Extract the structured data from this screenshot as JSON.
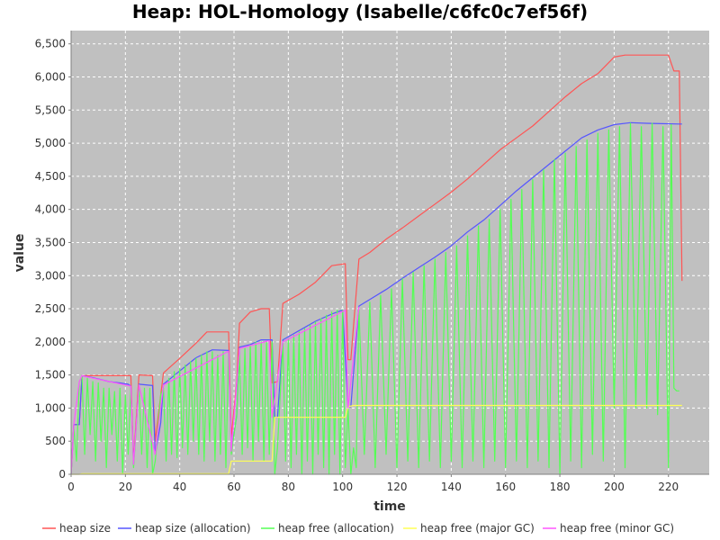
{
  "chart_data": {
    "type": "line",
    "title": "Heap: HOL-Homology (Isabelle/c6fc0c7ef56f)",
    "xlabel": "time",
    "ylabel": "value",
    "xlim": [
      0,
      235
    ],
    "ylim": [
      0,
      6700
    ],
    "x_ticks": [
      0,
      20,
      40,
      60,
      80,
      100,
      120,
      140,
      160,
      180,
      200,
      220
    ],
    "y_ticks": [
      0,
      500,
      1000,
      1500,
      2000,
      2500,
      3000,
      3500,
      4000,
      4500,
      5000,
      5500,
      6000,
      6500
    ],
    "x_tick_labels": [
      "0",
      "20",
      "40",
      "60",
      "80",
      "100",
      "120",
      "140",
      "160",
      "180",
      "200",
      "220"
    ],
    "y_tick_labels": [
      "0",
      "500",
      "1,000",
      "1,500",
      "2,000",
      "2,500",
      "3,000",
      "3,500",
      "4,000",
      "4,500",
      "5,000",
      "5,500",
      "6,000",
      "6,500"
    ],
    "grid": true,
    "legend_position": "bottom",
    "background": "#c0c0c0",
    "series": [
      {
        "name": "heap size",
        "color": "#ff5555",
        "points": [
          [
            0,
            0
          ],
          [
            1,
            750
          ],
          [
            3,
            750
          ],
          [
            4,
            1490
          ],
          [
            22,
            1490
          ],
          [
            23,
            200
          ],
          [
            25,
            1500
          ],
          [
            30,
            1490
          ],
          [
            31,
            500
          ],
          [
            33,
            1200
          ],
          [
            34,
            1530
          ],
          [
            40,
            1750
          ],
          [
            46,
            1980
          ],
          [
            50,
            2150
          ],
          [
            58,
            2150
          ],
          [
            59,
            560
          ],
          [
            61,
            1400
          ],
          [
            62,
            2280
          ],
          [
            66,
            2450
          ],
          [
            70,
            2500
          ],
          [
            73,
            2500
          ],
          [
            74,
            1380
          ],
          [
            76,
            1400
          ],
          [
            78,
            2580
          ],
          [
            84,
            2720
          ],
          [
            90,
            2900
          ],
          [
            96,
            3150
          ],
          [
            101,
            3180
          ],
          [
            102,
            1730
          ],
          [
            103,
            1730
          ],
          [
            106,
            3250
          ],
          [
            110,
            3350
          ],
          [
            116,
            3550
          ],
          [
            122,
            3720
          ],
          [
            128,
            3900
          ],
          [
            134,
            4080
          ],
          [
            140,
            4260
          ],
          [
            146,
            4460
          ],
          [
            152,
            4680
          ],
          [
            158,
            4900
          ],
          [
            164,
            5080
          ],
          [
            170,
            5260
          ],
          [
            176,
            5480
          ],
          [
            182,
            5700
          ],
          [
            188,
            5900
          ],
          [
            194,
            6050
          ],
          [
            200,
            6300
          ],
          [
            204,
            6330
          ],
          [
            220,
            6330
          ],
          [
            222,
            6090
          ],
          [
            224,
            6090
          ],
          [
            225,
            2920
          ]
        ]
      },
      {
        "name": "heap size (allocation)",
        "color": "#5555ff",
        "points": [
          [
            0,
            0
          ],
          [
            1,
            750
          ],
          [
            3,
            750
          ],
          [
            4,
            1490
          ],
          [
            8,
            1460
          ],
          [
            14,
            1400
          ],
          [
            18,
            1380
          ],
          [
            21,
            1360
          ],
          [
            22,
            1330
          ],
          [
            23,
            150
          ],
          [
            25,
            1360
          ],
          [
            30,
            1340
          ],
          [
            31,
            300
          ],
          [
            33,
            780
          ],
          [
            34,
            1360
          ],
          [
            40,
            1560
          ],
          [
            46,
            1760
          ],
          [
            52,
            1880
          ],
          [
            58,
            1870
          ],
          [
            59,
            350
          ],
          [
            61,
            880
          ],
          [
            62,
            1920
          ],
          [
            66,
            1960
          ],
          [
            70,
            2030
          ],
          [
            74,
            2030
          ],
          [
            75,
            860
          ],
          [
            76,
            860
          ],
          [
            78,
            2030
          ],
          [
            84,
            2170
          ],
          [
            90,
            2310
          ],
          [
            96,
            2420
          ],
          [
            100,
            2480
          ],
          [
            102,
            1020
          ],
          [
            103,
            1020
          ],
          [
            106,
            2540
          ],
          [
            110,
            2640
          ],
          [
            116,
            2790
          ],
          [
            122,
            2960
          ],
          [
            128,
            3120
          ],
          [
            134,
            3280
          ],
          [
            140,
            3450
          ],
          [
            146,
            3660
          ],
          [
            152,
            3840
          ],
          [
            158,
            4060
          ],
          [
            164,
            4280
          ],
          [
            170,
            4480
          ],
          [
            176,
            4680
          ],
          [
            182,
            4880
          ],
          [
            188,
            5080
          ],
          [
            194,
            5200
          ],
          [
            200,
            5280
          ],
          [
            206,
            5310
          ],
          [
            212,
            5300
          ],
          [
            224,
            5290
          ],
          [
            225,
            5290
          ]
        ]
      },
      {
        "name": "heap free (allocation)",
        "color": "#55ff55",
        "points": [
          [
            0,
            0
          ],
          [
            1,
            700
          ],
          [
            2,
            200
          ],
          [
            3,
            1400
          ],
          [
            4,
            1480
          ],
          [
            5,
            300
          ],
          [
            6,
            1450
          ],
          [
            7,
            600
          ],
          [
            8,
            1400
          ],
          [
            9,
            200
          ],
          [
            10,
            1380
          ],
          [
            11,
            500
          ],
          [
            12,
            1300
          ],
          [
            13,
            100
          ],
          [
            14,
            1300
          ],
          [
            15,
            600
          ],
          [
            16,
            1250
          ],
          [
            17,
            200
          ],
          [
            18,
            1300
          ],
          [
            19,
            0
          ],
          [
            20,
            1200
          ],
          [
            21,
            300
          ],
          [
            22,
            1300
          ],
          [
            23,
            100
          ],
          [
            25,
            1350
          ],
          [
            26,
            300
          ],
          [
            27,
            1300
          ],
          [
            28,
            100
          ],
          [
            29,
            1300
          ],
          [
            30,
            0
          ],
          [
            31,
            200
          ],
          [
            33,
            1200
          ],
          [
            34,
            1300
          ],
          [
            35,
            200
          ],
          [
            36,
            1450
          ],
          [
            37,
            300
          ],
          [
            38,
            1550
          ],
          [
            39,
            250
          ],
          [
            40,
            1600
          ],
          [
            41,
            400
          ],
          [
            42,
            1650
          ],
          [
            43,
            300
          ],
          [
            44,
            1700
          ],
          [
            45,
            500
          ],
          [
            46,
            1750
          ],
          [
            47,
            300
          ],
          [
            48,
            1800
          ],
          [
            49,
            200
          ],
          [
            50,
            1850
          ],
          [
            51,
            500
          ],
          [
            52,
            1850
          ],
          [
            53,
            200
          ],
          [
            54,
            1800
          ],
          [
            55,
            300
          ],
          [
            56,
            1850
          ],
          [
            57,
            100
          ],
          [
            58,
            1850
          ],
          [
            59,
            300
          ],
          [
            61,
            900
          ],
          [
            62,
            1800
          ],
          [
            63,
            300
          ],
          [
            64,
            1900
          ],
          [
            65,
            400
          ],
          [
            66,
            1950
          ],
          [
            67,
            200
          ],
          [
            68,
            2000
          ],
          [
            69,
            500
          ],
          [
            70,
            2000
          ],
          [
            71,
            200
          ],
          [
            72,
            2000
          ],
          [
            73,
            300
          ],
          [
            74,
            2000
          ],
          [
            75,
            0
          ],
          [
            76,
            400
          ],
          [
            78,
            2000
          ],
          [
            79,
            200
          ],
          [
            80,
            2050
          ],
          [
            81,
            100
          ],
          [
            82,
            2100
          ],
          [
            83,
            300
          ],
          [
            84,
            2150
          ],
          [
            85,
            0
          ],
          [
            86,
            2200
          ],
          [
            87,
            200
          ],
          [
            88,
            2250
          ],
          [
            89,
            0
          ],
          [
            90,
            2300
          ],
          [
            91,
            300
          ],
          [
            92,
            2350
          ],
          [
            93,
            100
          ],
          [
            94,
            2400
          ],
          [
            95,
            0
          ],
          [
            96,
            2450
          ],
          [
            97,
            300
          ],
          [
            98,
            2480
          ],
          [
            99,
            0
          ],
          [
            100,
            2480
          ],
          [
            101,
            100
          ],
          [
            102,
            1000
          ],
          [
            103,
            0
          ],
          [
            104,
            400
          ],
          [
            105,
            100
          ],
          [
            106,
            2500
          ],
          [
            108,
            300
          ],
          [
            110,
            2600
          ],
          [
            112,
            100
          ],
          [
            114,
            2700
          ],
          [
            116,
            300
          ],
          [
            118,
            2800
          ],
          [
            120,
            100
          ],
          [
            122,
            2950
          ],
          [
            124,
            200
          ],
          [
            126,
            3050
          ],
          [
            128,
            100
          ],
          [
            130,
            3150
          ],
          [
            132,
            200
          ],
          [
            134,
            3250
          ],
          [
            136,
            100
          ],
          [
            138,
            3350
          ],
          [
            140,
            200
          ],
          [
            142,
            3450
          ],
          [
            144,
            100
          ],
          [
            146,
            3600
          ],
          [
            148,
            200
          ],
          [
            150,
            3750
          ],
          [
            152,
            100
          ],
          [
            154,
            3850
          ],
          [
            156,
            200
          ],
          [
            158,
            4000
          ],
          [
            160,
            100
          ],
          [
            162,
            4150
          ],
          [
            164,
            200
          ],
          [
            166,
            4300
          ],
          [
            168,
            100
          ],
          [
            170,
            4450
          ],
          [
            172,
            200
          ],
          [
            174,
            4600
          ],
          [
            176,
            100
          ],
          [
            178,
            4750
          ],
          [
            180,
            0
          ],
          [
            182,
            4850
          ],
          [
            184,
            200
          ],
          [
            186,
            4950
          ],
          [
            188,
            100
          ],
          [
            190,
            5050
          ],
          [
            192,
            300
          ],
          [
            194,
            5150
          ],
          [
            196,
            200
          ],
          [
            198,
            5200
          ],
          [
            200,
            1000
          ],
          [
            202,
            5250
          ],
          [
            204,
            100
          ],
          [
            206,
            5300
          ],
          [
            208,
            1000
          ],
          [
            210,
            5250
          ],
          [
            212,
            1000
          ],
          [
            214,
            5300
          ],
          [
            216,
            900
          ],
          [
            218,
            5250
          ],
          [
            220,
            100
          ],
          [
            221,
            5280
          ],
          [
            222,
            1300
          ],
          [
            223,
            1260
          ],
          [
            224,
            1260
          ]
        ]
      },
      {
        "name": "heap free (major GC)",
        "color": "#ffff55",
        "points": [
          [
            0,
            0
          ],
          [
            1,
            0
          ],
          [
            3,
            0
          ],
          [
            4,
            10
          ],
          [
            58,
            10
          ],
          [
            59,
            200
          ],
          [
            74,
            200
          ],
          [
            75,
            860
          ],
          [
            101,
            860
          ],
          [
            102,
            1020
          ],
          [
            104,
            1040
          ],
          [
            225,
            1040
          ]
        ]
      },
      {
        "name": "heap free (minor GC)",
        "color": "#ff55ff",
        "points": [
          [
            0,
            0
          ],
          [
            1,
            750
          ],
          [
            3,
            1400
          ],
          [
            4,
            1490
          ],
          [
            22,
            1330
          ],
          [
            23,
            150
          ],
          [
            25,
            1350
          ],
          [
            31,
            300
          ],
          [
            34,
            1350
          ],
          [
            58,
            1860
          ],
          [
            59,
            350
          ],
          [
            62,
            1900
          ],
          [
            73,
            2020
          ],
          [
            74,
            860
          ],
          [
            78,
            2000
          ],
          [
            101,
            2480
          ],
          [
            102,
            1000
          ],
          [
            106,
            2530
          ]
        ]
      }
    ]
  }
}
